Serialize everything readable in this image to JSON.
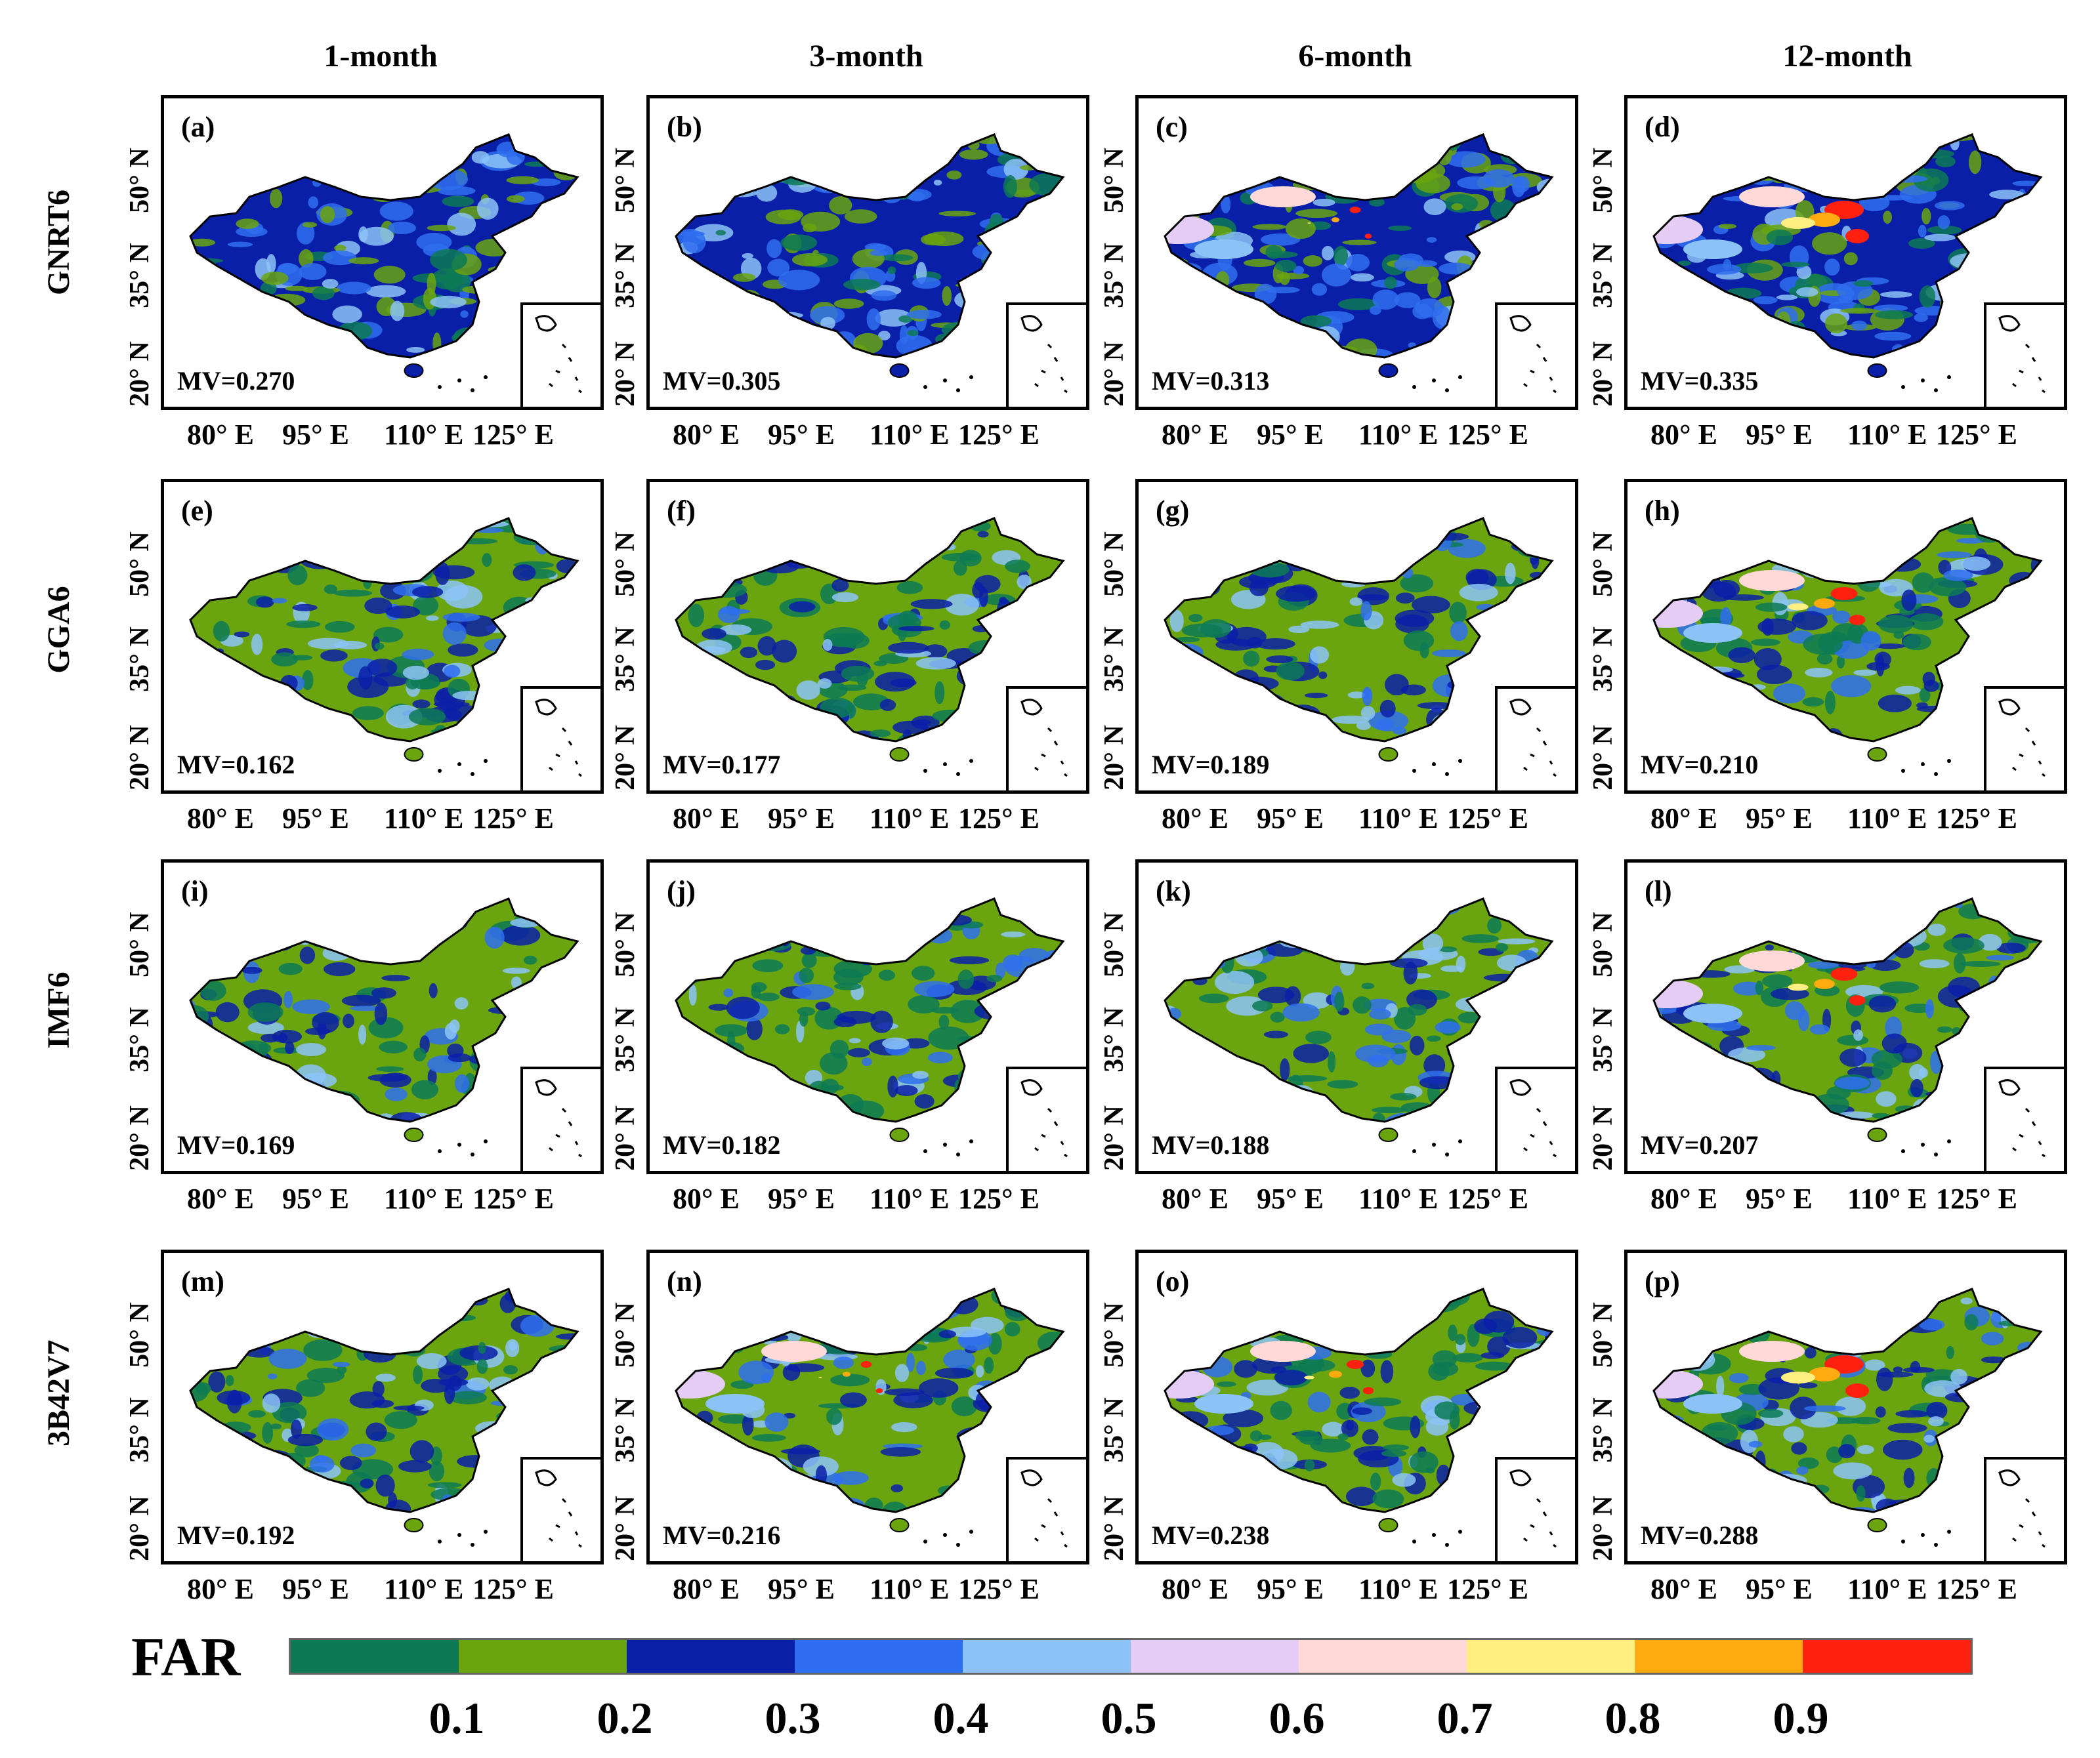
{
  "columns": [
    "1-month",
    "3-month",
    "6-month",
    "12-month"
  ],
  "rows": [
    "GNRT6",
    "GGA6",
    "IMF6",
    "3B42V7"
  ],
  "panels": [
    {
      "label": "(a)",
      "mv": "MV=0.270",
      "dominant": "blue",
      "hotspot": 0
    },
    {
      "label": "(b)",
      "mv": "MV=0.305",
      "dominant": "blue",
      "hotspot": 0
    },
    {
      "label": "(c)",
      "mv": "MV=0.313",
      "dominant": "blue",
      "hotspot": 0.1
    },
    {
      "label": "(d)",
      "mv": "MV=0.335",
      "dominant": "blue",
      "hotspot": 1
    },
    {
      "label": "(e)",
      "mv": "MV=0.162",
      "dominant": "green",
      "hotspot": 0
    },
    {
      "label": "(f)",
      "mv": "MV=0.177",
      "dominant": "green",
      "hotspot": 0
    },
    {
      "label": "(g)",
      "mv": "MV=0.189",
      "dominant": "green",
      "hotspot": 0
    },
    {
      "label": "(h)",
      "mv": "MV=0.210",
      "dominant": "green",
      "hotspot": 0.6
    },
    {
      "label": "(i)",
      "mv": "MV=0.169",
      "dominant": "green",
      "hotspot": 0
    },
    {
      "label": "(j)",
      "mv": "MV=0.182",
      "dominant": "green",
      "hotspot": 0
    },
    {
      "label": "(k)",
      "mv": "MV=0.188",
      "dominant": "green",
      "hotspot": 0
    },
    {
      "label": "(l)",
      "mv": "MV=0.207",
      "dominant": "green",
      "hotspot": 0.6
    },
    {
      "label": "(m)",
      "mv": "MV=0.192",
      "dominant": "green",
      "hotspot": 0
    },
    {
      "label": "(n)",
      "mv": "MV=0.216",
      "dominant": "green",
      "hotspot": 0.1
    },
    {
      "label": "(o)",
      "mv": "MV=0.238",
      "dominant": "green",
      "hotspot": 0.3
    },
    {
      "label": "(p)",
      "mv": "MV=0.288",
      "dominant": "green",
      "hotspot": 1
    }
  ],
  "lat_labels": [
    "20° N",
    "35° N",
    "50° N"
  ],
  "lon_labels": [
    "80° E",
    "95° E",
    "110° E",
    "125° E"
  ],
  "colorbar": {
    "title": "FAR",
    "colors": [
      "#0d7a55",
      "#6aa50f",
      "#0a1fa8",
      "#2f6ef0",
      "#8cc3f7",
      "#e4ccf5",
      "#ffd8d8",
      "#ffee80",
      "#ffaa10",
      "#ff2010"
    ],
    "ticks": [
      "0.1",
      "0.2",
      "0.3",
      "0.4",
      "0.5",
      "0.6",
      "0.7",
      "0.8",
      "0.9"
    ]
  }
}
